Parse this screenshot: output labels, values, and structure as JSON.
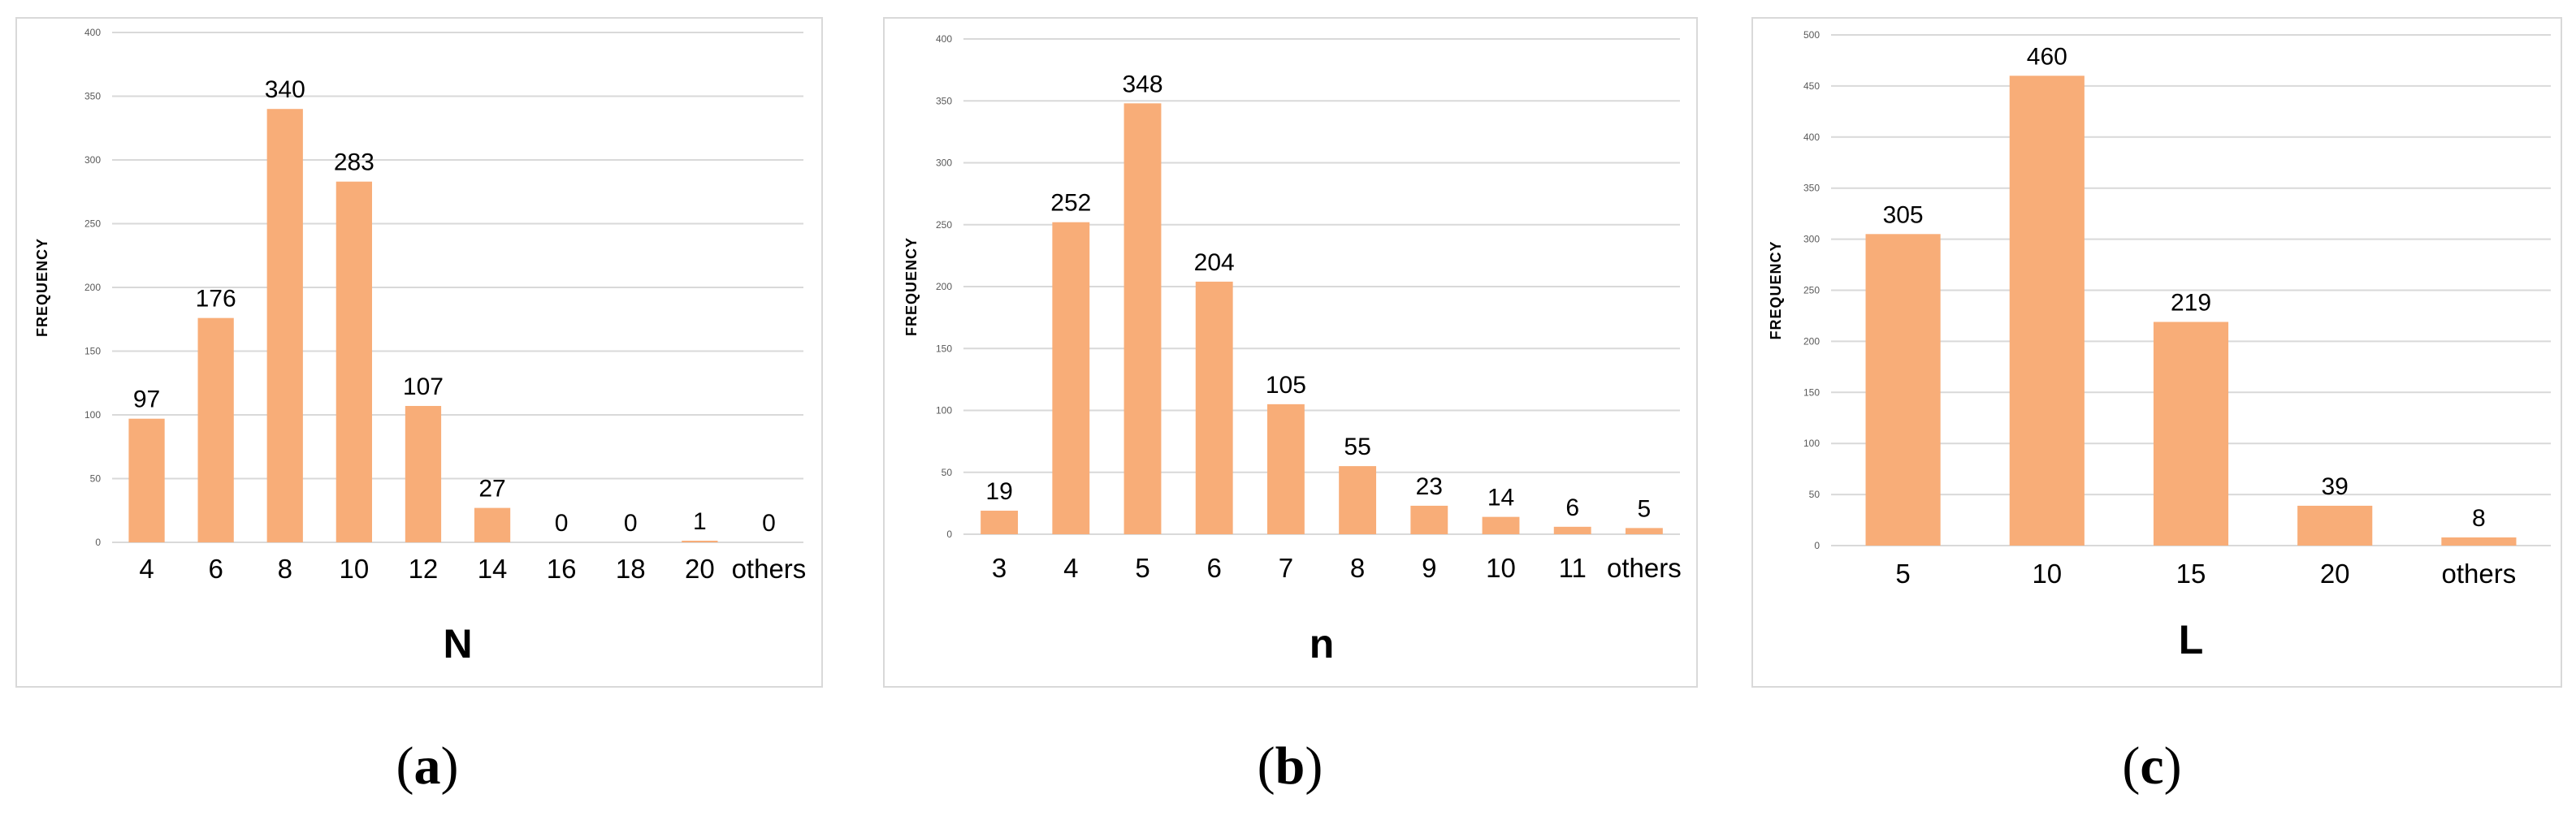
{
  "chart_data": [
    {
      "type": "bar",
      "caption_letter": "a",
      "xlabel": "N",
      "ylabel": "FREQUENCY",
      "categories": [
        "4",
        "6",
        "8",
        "10",
        "12",
        "14",
        "16",
        "18",
        "20",
        "others"
      ],
      "values": [
        97,
        176,
        340,
        283,
        107,
        27,
        0,
        0,
        1,
        0
      ],
      "ylim": [
        0,
        400
      ],
      "yticks": [
        0,
        50,
        100,
        150,
        200,
        250,
        300,
        350,
        400
      ],
      "grid": true,
      "bar_color": "#f8ad78"
    },
    {
      "type": "bar",
      "caption_letter": "b",
      "xlabel": "n",
      "ylabel": "FREQUENCY",
      "categories": [
        "3",
        "4",
        "5",
        "6",
        "7",
        "8",
        "9",
        "10",
        "11",
        "others"
      ],
      "values": [
        19,
        252,
        348,
        204,
        105,
        55,
        23,
        14,
        6,
        5
      ],
      "ylim": [
        0,
        400
      ],
      "yticks": [
        0,
        50,
        100,
        150,
        200,
        250,
        300,
        350,
        400
      ],
      "grid": true,
      "bar_color": "#f8ad78"
    },
    {
      "type": "bar",
      "caption_letter": "c",
      "xlabel": "L",
      "ylabel": "FREQUENCY",
      "categories": [
        "5",
        "10",
        "15",
        "20",
        "others"
      ],
      "values": [
        305,
        460,
        219,
        39,
        8
      ],
      "ylim": [
        0,
        500
      ],
      "yticks": [
        0,
        50,
        100,
        150,
        200,
        250,
        300,
        350,
        400,
        450,
        500
      ],
      "grid": true,
      "bar_color": "#f8ad78"
    }
  ]
}
